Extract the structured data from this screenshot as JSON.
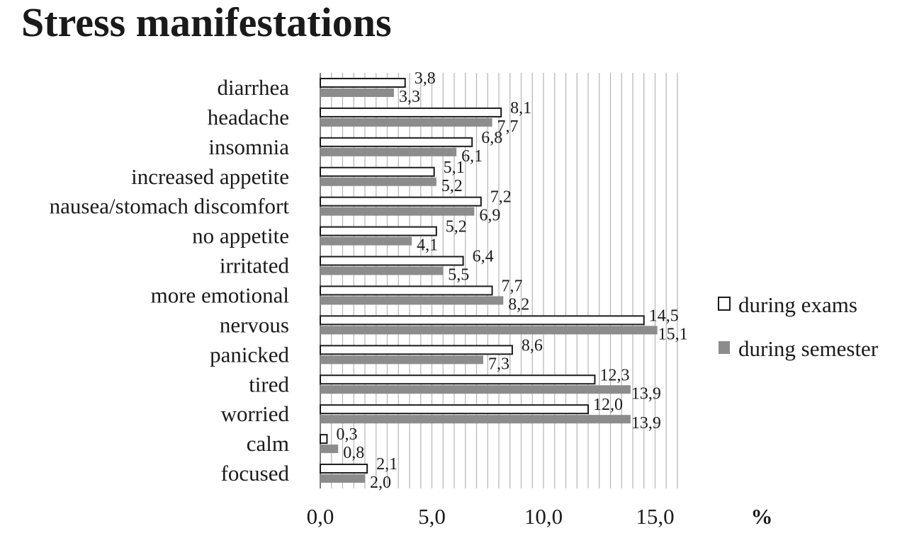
{
  "chart_data": {
    "type": "bar",
    "orientation": "horizontal",
    "title": "Stress manifestations",
    "xlabel": "%",
    "ylabel": "",
    "xlim": [
      0,
      16
    ],
    "xticks": [
      0,
      5,
      10,
      15
    ],
    "xtick_labels": [
      "0,0",
      "5,0",
      "10,0",
      "15,0"
    ],
    "grid": "vertical",
    "legend_position": "right",
    "categories": [
      "diarrhea",
      "headache",
      "insomnia",
      "increased appetite",
      "nausea/stomach discomfort",
      "no appetite",
      "irritated",
      "more emotional",
      "nervous",
      "panicked",
      "tired",
      "worried",
      "calm",
      "focused"
    ],
    "series": [
      {
        "name": "during exams",
        "color": "#ffffff",
        "stroke": "#1a1a1a",
        "values": [
          3.8,
          8.1,
          6.8,
          5.1,
          7.2,
          5.2,
          6.4,
          7.7,
          14.5,
          8.6,
          12.3,
          12.0,
          0.3,
          2.1
        ],
        "labels": [
          "3,8",
          "8,1",
          "6,8",
          "5,1",
          "7,2",
          "5,2",
          "6,4",
          "7,7",
          "14,5",
          "8,6",
          "12,3",
          "12,0",
          "0,3",
          "2,1"
        ]
      },
      {
        "name": "during semester",
        "color": "#8c8c8c",
        "stroke": "#8c8c8c",
        "values": [
          3.3,
          7.7,
          6.1,
          5.2,
          6.9,
          4.1,
          5.5,
          8.2,
          15.1,
          7.3,
          13.9,
          13.9,
          0.8,
          2.0
        ],
        "labels": [
          "3,3",
          "7,7",
          "6,1",
          "5,2",
          "6,9",
          "4,1",
          "5,5",
          "8,2",
          "15,1",
          "7,3",
          "13,9",
          "13,9",
          "0,8",
          "2,0"
        ]
      }
    ]
  }
}
